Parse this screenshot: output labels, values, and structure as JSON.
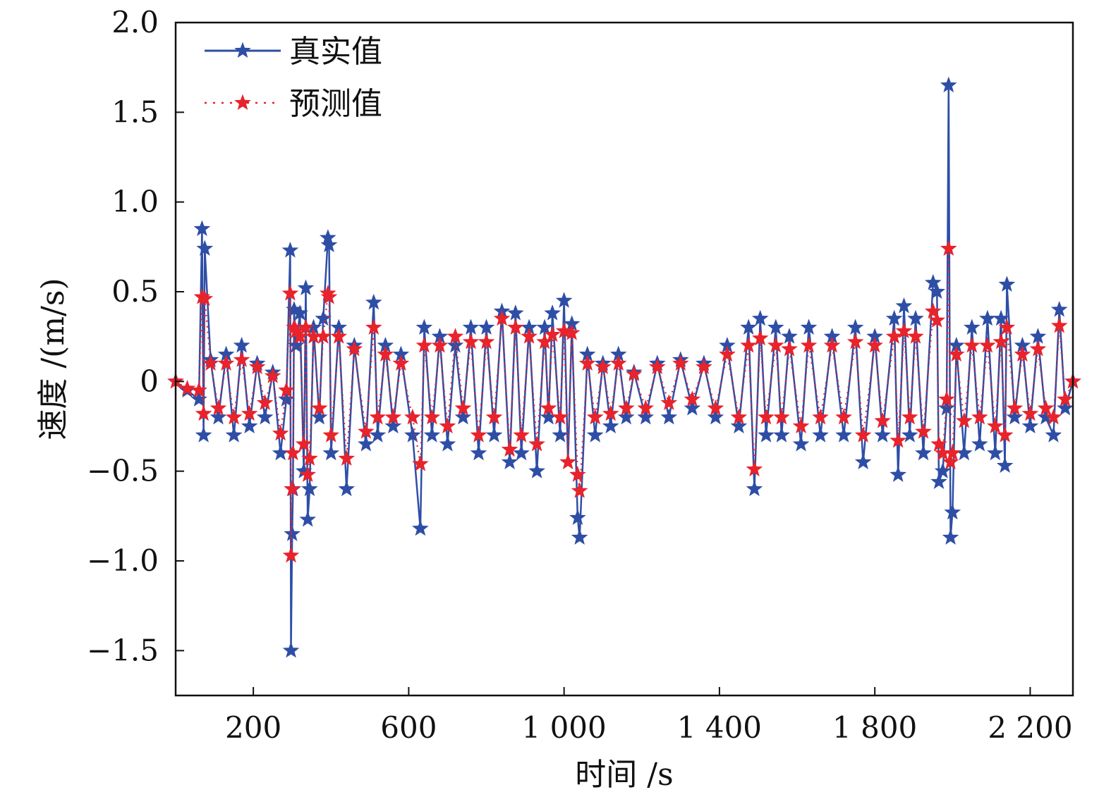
{
  "chart_data": {
    "type": "line",
    "title": "",
    "xlabel": "时间 /s",
    "ylabel": "速度 /(m/s)",
    "xlim": [
      0,
      2310
    ],
    "ylim": [
      -1.75,
      2.0
    ],
    "x_ticks": [
      {
        "value": 200,
        "label": "200"
      },
      {
        "value": 600,
        "label": "600"
      },
      {
        "value": 1000,
        "label": "1 000"
      },
      {
        "value": 1400,
        "label": "1 400"
      },
      {
        "value": 1800,
        "label": "1 800"
      },
      {
        "value": 2200,
        "label": "2 200"
      }
    ],
    "y_ticks": [
      {
        "value": 2.0,
        "label": "2.0"
      },
      {
        "value": 1.5,
        "label": "1.5"
      },
      {
        "value": 1.0,
        "label": "1.0"
      },
      {
        "value": 0.5,
        "label": "0.5"
      },
      {
        "value": 0,
        "label": "0"
      },
      {
        "value": -0.5,
        "label": "−0.5"
      },
      {
        "value": -1.0,
        "label": "−1.0"
      },
      {
        "value": -1.5,
        "label": "−1.5"
      }
    ],
    "grid": false,
    "legend_position": "top-left",
    "series": [
      {
        "name": "真实值",
        "color": "#2e4ea6",
        "line_style": "solid",
        "marker": "star",
        "points": [
          [
            0,
            0.0
          ],
          [
            30,
            -0.05
          ],
          [
            60,
            -0.1
          ],
          [
            68,
            0.85
          ],
          [
            72,
            -0.3
          ],
          [
            75,
            0.74
          ],
          [
            90,
            0.12
          ],
          [
            110,
            -0.2
          ],
          [
            130,
            0.15
          ],
          [
            150,
            -0.3
          ],
          [
            170,
            0.2
          ],
          [
            190,
            -0.25
          ],
          [
            210,
            0.1
          ],
          [
            230,
            -0.2
          ],
          [
            250,
            0.05
          ],
          [
            270,
            -0.4
          ],
          [
            285,
            -0.1
          ],
          [
            295,
            0.73
          ],
          [
            297,
            -1.5
          ],
          [
            300,
            -0.85
          ],
          [
            302,
            -0.6
          ],
          [
            305,
            0.4
          ],
          [
            310,
            0.2
          ],
          [
            320,
            0.38
          ],
          [
            330,
            -0.5
          ],
          [
            335,
            0.52
          ],
          [
            340,
            -0.77
          ],
          [
            345,
            -0.6
          ],
          [
            355,
            0.3
          ],
          [
            370,
            -0.2
          ],
          [
            380,
            0.35
          ],
          [
            392,
            0.8
          ],
          [
            395,
            0.76
          ],
          [
            400,
            -0.4
          ],
          [
            420,
            0.3
          ],
          [
            440,
            -0.6
          ],
          [
            460,
            0.2
          ],
          [
            490,
            -0.35
          ],
          [
            510,
            0.44
          ],
          [
            520,
            -0.3
          ],
          [
            540,
            0.2
          ],
          [
            560,
            -0.25
          ],
          [
            580,
            0.15
          ],
          [
            610,
            -0.3
          ],
          [
            630,
            -0.82
          ],
          [
            640,
            0.3
          ],
          [
            660,
            -0.3
          ],
          [
            680,
            0.25
          ],
          [
            700,
            -0.35
          ],
          [
            720,
            0.2
          ],
          [
            740,
            -0.2
          ],
          [
            760,
            0.3
          ],
          [
            780,
            -0.4
          ],
          [
            800,
            0.3
          ],
          [
            820,
            -0.3
          ],
          [
            840,
            0.39
          ],
          [
            860,
            -0.45
          ],
          [
            875,
            0.38
          ],
          [
            890,
            -0.4
          ],
          [
            910,
            0.3
          ],
          [
            930,
            -0.5
          ],
          [
            950,
            0.3
          ],
          [
            960,
            -0.2
          ],
          [
            970,
            0.38
          ],
          [
            990,
            -0.3
          ],
          [
            1000,
            0.45
          ],
          [
            1010,
            -0.45
          ],
          [
            1020,
            0.32
          ],
          [
            1035,
            -0.76
          ],
          [
            1040,
            -0.87
          ],
          [
            1060,
            0.15
          ],
          [
            1080,
            -0.3
          ],
          [
            1100,
            0.1
          ],
          [
            1120,
            -0.25
          ],
          [
            1140,
            0.15
          ],
          [
            1160,
            -0.2
          ],
          [
            1180,
            0.05
          ],
          [
            1210,
            -0.2
          ],
          [
            1240,
            0.1
          ],
          [
            1270,
            -0.2
          ],
          [
            1300,
            0.12
          ],
          [
            1330,
            -0.15
          ],
          [
            1360,
            0.1
          ],
          [
            1390,
            -0.2
          ],
          [
            1420,
            0.2
          ],
          [
            1450,
            -0.25
          ],
          [
            1475,
            0.3
          ],
          [
            1490,
            -0.6
          ],
          [
            1505,
            0.35
          ],
          [
            1520,
            -0.3
          ],
          [
            1545,
            0.3
          ],
          [
            1560,
            -0.3
          ],
          [
            1580,
            0.25
          ],
          [
            1610,
            -0.35
          ],
          [
            1630,
            0.3
          ],
          [
            1660,
            -0.3
          ],
          [
            1690,
            0.25
          ],
          [
            1720,
            -0.3
          ],
          [
            1750,
            0.3
          ],
          [
            1770,
            -0.45
          ],
          [
            1800,
            0.25
          ],
          [
            1820,
            -0.3
          ],
          [
            1850,
            0.35
          ],
          [
            1860,
            -0.52
          ],
          [
            1875,
            0.42
          ],
          [
            1890,
            -0.3
          ],
          [
            1905,
            0.35
          ],
          [
            1925,
            -0.4
          ],
          [
            1950,
            0.55
          ],
          [
            1960,
            0.5
          ],
          [
            1965,
            -0.56
          ],
          [
            1975,
            -0.5
          ],
          [
            1985,
            -0.15
          ],
          [
            1990,
            1.65
          ],
          [
            1995,
            -0.87
          ],
          [
            2000,
            -0.73
          ],
          [
            2010,
            0.2
          ],
          [
            2030,
            -0.4
          ],
          [
            2050,
            0.3
          ],
          [
            2070,
            -0.35
          ],
          [
            2090,
            0.35
          ],
          [
            2110,
            -0.4
          ],
          [
            2125,
            0.35
          ],
          [
            2135,
            -0.47
          ],
          [
            2140,
            0.54
          ],
          [
            2160,
            -0.2
          ],
          [
            2180,
            0.2
          ],
          [
            2200,
            -0.25
          ],
          [
            2220,
            0.25
          ],
          [
            2240,
            -0.2
          ],
          [
            2260,
            -0.3
          ],
          [
            2275,
            0.4
          ],
          [
            2290,
            -0.15
          ],
          [
            2310,
            0.0
          ]
        ]
      },
      {
        "name": "预测值",
        "color": "#e8232b",
        "line_style": "dotted",
        "marker": "star",
        "points": [
          [
            0,
            0.0
          ],
          [
            30,
            -0.04
          ],
          [
            60,
            -0.05
          ],
          [
            68,
            0.47
          ],
          [
            72,
            -0.18
          ],
          [
            75,
            0.46
          ],
          [
            90,
            0.1
          ],
          [
            110,
            -0.15
          ],
          [
            130,
            0.1
          ],
          [
            150,
            -0.2
          ],
          [
            170,
            0.12
          ],
          [
            190,
            -0.18
          ],
          [
            210,
            0.08
          ],
          [
            230,
            -0.12
          ],
          [
            250,
            0.03
          ],
          [
            270,
            -0.29
          ],
          [
            285,
            -0.05
          ],
          [
            295,
            0.49
          ],
          [
            297,
            -0.97
          ],
          [
            300,
            -0.6
          ],
          [
            302,
            -0.4
          ],
          [
            305,
            0.3
          ],
          [
            310,
            0.28
          ],
          [
            320,
            0.25
          ],
          [
            330,
            -0.35
          ],
          [
            335,
            0.3
          ],
          [
            340,
            -0.52
          ],
          [
            345,
            -0.43
          ],
          [
            355,
            0.25
          ],
          [
            370,
            -0.15
          ],
          [
            380,
            0.25
          ],
          [
            392,
            0.49
          ],
          [
            395,
            0.47
          ],
          [
            400,
            -0.3
          ],
          [
            420,
            0.25
          ],
          [
            440,
            -0.43
          ],
          [
            460,
            0.18
          ],
          [
            490,
            -0.28
          ],
          [
            510,
            0.3
          ],
          [
            520,
            -0.2
          ],
          [
            540,
            0.15
          ],
          [
            560,
            -0.2
          ],
          [
            580,
            0.1
          ],
          [
            610,
            -0.2
          ],
          [
            630,
            -0.46
          ],
          [
            640,
            0.2
          ],
          [
            660,
            -0.2
          ],
          [
            680,
            0.2
          ],
          [
            700,
            -0.25
          ],
          [
            720,
            0.25
          ],
          [
            740,
            -0.15
          ],
          [
            760,
            0.22
          ],
          [
            780,
            -0.3
          ],
          [
            800,
            0.22
          ],
          [
            820,
            -0.2
          ],
          [
            840,
            0.35
          ],
          [
            860,
            -0.38
          ],
          [
            875,
            0.3
          ],
          [
            890,
            -0.3
          ],
          [
            910,
            0.25
          ],
          [
            930,
            -0.35
          ],
          [
            950,
            0.22
          ],
          [
            960,
            -0.15
          ],
          [
            970,
            0.26
          ],
          [
            990,
            -0.2
          ],
          [
            1000,
            0.28
          ],
          [
            1010,
            -0.45
          ],
          [
            1020,
            0.27
          ],
          [
            1035,
            -0.52
          ],
          [
            1040,
            -0.61
          ],
          [
            1060,
            0.1
          ],
          [
            1080,
            -0.2
          ],
          [
            1100,
            0.08
          ],
          [
            1120,
            -0.18
          ],
          [
            1140,
            0.1
          ],
          [
            1160,
            -0.15
          ],
          [
            1180,
            0.04
          ],
          [
            1210,
            -0.15
          ],
          [
            1240,
            0.08
          ],
          [
            1270,
            -0.12
          ],
          [
            1300,
            0.1
          ],
          [
            1330,
            -0.1
          ],
          [
            1360,
            0.08
          ],
          [
            1390,
            -0.15
          ],
          [
            1420,
            0.15
          ],
          [
            1450,
            -0.2
          ],
          [
            1475,
            0.2
          ],
          [
            1490,
            -0.49
          ],
          [
            1505,
            0.24
          ],
          [
            1520,
            -0.2
          ],
          [
            1545,
            0.2
          ],
          [
            1560,
            -0.2
          ],
          [
            1580,
            0.18
          ],
          [
            1610,
            -0.25
          ],
          [
            1630,
            0.2
          ],
          [
            1660,
            -0.2
          ],
          [
            1690,
            0.2
          ],
          [
            1720,
            -0.2
          ],
          [
            1750,
            0.22
          ],
          [
            1770,
            -0.3
          ],
          [
            1800,
            0.2
          ],
          [
            1820,
            -0.22
          ],
          [
            1850,
            0.25
          ],
          [
            1860,
            -0.33
          ],
          [
            1875,
            0.28
          ],
          [
            1890,
            -0.2
          ],
          [
            1905,
            0.25
          ],
          [
            1925,
            -0.28
          ],
          [
            1950,
            0.39
          ],
          [
            1960,
            0.34
          ],
          [
            1965,
            -0.35
          ],
          [
            1975,
            -0.4
          ],
          [
            1985,
            -0.1
          ],
          [
            1990,
            0.74
          ],
          [
            1995,
            -0.45
          ],
          [
            2000,
            -0.4
          ],
          [
            2010,
            0.15
          ],
          [
            2030,
            -0.22
          ],
          [
            2050,
            0.2
          ],
          [
            2070,
            -0.2
          ],
          [
            2090,
            0.2
          ],
          [
            2110,
            -0.25
          ],
          [
            2125,
            0.22
          ],
          [
            2135,
            -0.3
          ],
          [
            2140,
            0.3
          ],
          [
            2160,
            -0.15
          ],
          [
            2180,
            0.15
          ],
          [
            2200,
            -0.18
          ],
          [
            2220,
            0.18
          ],
          [
            2240,
            -0.15
          ],
          [
            2260,
            -0.2
          ],
          [
            2275,
            0.31
          ],
          [
            2290,
            -0.1
          ],
          [
            2310,
            0.0
          ]
        ]
      }
    ]
  }
}
